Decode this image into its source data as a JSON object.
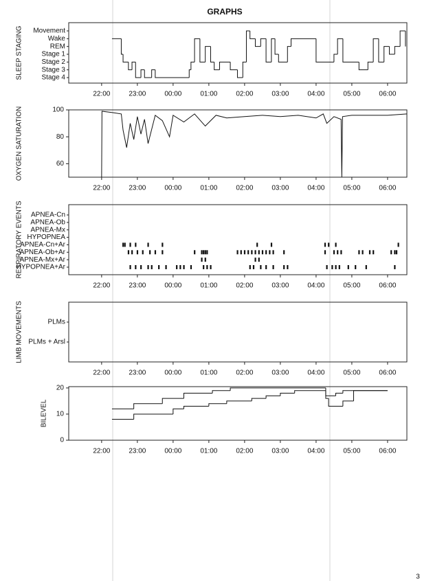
{
  "title": "GRAPHS",
  "page_number": "3",
  "chart_data": [
    {
      "type": "step",
      "ylabel": "SLEEP STAGING",
      "ycategories": [
        "Movement",
        "Wake",
        "REM",
        "Stage 1",
        "Stage 2",
        "Stage 3",
        "Stage 4"
      ],
      "xlim": [
        21.08,
        30.54
      ],
      "xticks": [
        {
          "value": 22,
          "label": "22:00"
        },
        {
          "value": 23,
          "label": "23:00"
        },
        {
          "value": 24,
          "label": "00:00"
        },
        {
          "value": 25,
          "label": "01:00"
        },
        {
          "value": 26,
          "label": "02:00"
        },
        {
          "value": 27,
          "label": "03:00"
        },
        {
          "value": 28,
          "label": "04:00"
        },
        {
          "value": 29,
          "label": "05:00"
        },
        {
          "value": 30,
          "label": "06:00"
        }
      ],
      "series": [
        {
          "color": "#111111",
          "x": [
            22.29,
            22.55,
            22.6,
            22.75,
            22.85,
            22.95,
            23.1,
            23.2,
            23.4,
            23.5,
            24.45,
            24.5,
            24.6,
            24.75,
            24.9,
            25.05,
            25.15,
            25.3,
            25.6,
            25.8,
            25.95,
            26.05,
            26.15,
            26.3,
            26.45,
            26.6,
            26.75,
            26.85,
            26.95,
            27.2,
            27.3,
            28.0,
            28.5,
            28.6,
            28.75,
            29.2,
            29.45,
            29.6,
            29.75,
            29.9,
            30.05,
            30.2,
            30.35,
            30.5
          ],
          "values": [
            "Wake",
            "Stage 1",
            "Stage 2",
            "Stage 3",
            "Stage 2",
            "Stage 4",
            "Stage 3",
            "Stage 4",
            "Stage 3",
            "Stage 4",
            "Stage 3",
            "Stage 2",
            "Wake",
            "Stage 2",
            "REM",
            "Stage 2",
            "Stage 3",
            "Stage 2",
            "Stage 3",
            "Stage 4",
            "Stage 2",
            "Movement",
            "Wake",
            "REM",
            "Wake",
            "Stage 2",
            "Wake",
            "Stage 1",
            "Stage 2",
            "REM",
            "Wake",
            "Stage 2",
            "Stage 1",
            "Wake",
            "Stage 2",
            "Stage 3",
            "Stage 2",
            "Wake",
            "Stage 2",
            "REM",
            "Stage 1",
            "REM",
            "Movement",
            "REM"
          ]
        }
      ]
    },
    {
      "type": "line",
      "ylabel": "OXYGEN SATURATION",
      "xlim": [
        21.08,
        30.54
      ],
      "ylim": [
        50,
        100
      ],
      "yticks": [
        60,
        80,
        100
      ],
      "xticks": [
        {
          "value": 22,
          "label": "22:00"
        },
        {
          "value": 23,
          "label": "23:00"
        },
        {
          "value": 24,
          "label": "00:00"
        },
        {
          "value": 25,
          "label": "01:00"
        },
        {
          "value": 26,
          "label": "02:00"
        },
        {
          "value": 27,
          "label": "03:00"
        },
        {
          "value": 28,
          "label": "04:00"
        },
        {
          "value": 29,
          "label": "05:00"
        },
        {
          "value": 30,
          "label": "06:00"
        }
      ],
      "series": [
        {
          "color": "#111111",
          "x": [
            22.0,
            22.01,
            22.3,
            22.55,
            22.6,
            22.7,
            22.8,
            22.9,
            23.0,
            23.1,
            23.2,
            23.3,
            23.5,
            23.7,
            23.9,
            24.0,
            24.3,
            24.6,
            24.9,
            25.2,
            25.5,
            26.0,
            26.5,
            27.0,
            27.5,
            28.0,
            28.2,
            28.3,
            28.5,
            28.7,
            28.72,
            28.74,
            29.0,
            29.5,
            30.0,
            30.54
          ],
          "values": [
            50,
            99,
            98,
            97,
            85,
            72,
            90,
            78,
            95,
            82,
            93,
            75,
            96,
            92,
            80,
            96,
            91,
            97,
            88,
            96,
            94,
            95,
            96,
            95,
            96,
            94,
            97,
            90,
            95,
            93,
            50,
            95,
            96,
            96,
            96,
            97
          ]
        }
      ]
    },
    {
      "type": "event",
      "ylabel": "RESPIRATORY EVENTS",
      "categories": [
        "APNEA-Cn",
        "APNEA-Ob",
        "APNEA-Mx",
        "HYPOPNEA",
        "APNEA-Cn+Ar",
        "APNEA-Ob+Ar",
        "APNEA-Mx+Ar",
        "HYPOPNEA+Ar"
      ],
      "xlim": [
        21.08,
        30.54
      ],
      "xticks": [
        {
          "value": 22,
          "label": "22:00"
        },
        {
          "value": 23,
          "label": "23:00"
        },
        {
          "value": 24,
          "label": "00:00"
        },
        {
          "value": 25,
          "label": "01:00"
        },
        {
          "value": 26,
          "label": "02:00"
        },
        {
          "value": 27,
          "label": "03:00"
        },
        {
          "value": 28,
          "label": "04:00"
        },
        {
          "value": 29,
          "label": "05:00"
        },
        {
          "value": 30,
          "label": "06:00"
        }
      ],
      "events": [
        [],
        [],
        [],
        [],
        [
          22.6,
          22.65,
          22.8,
          22.95,
          23.3,
          23.7,
          26.35,
          26.75,
          28.25,
          28.35,
          28.55,
          30.3
        ],
        [
          22.75,
          22.85,
          23.0,
          23.15,
          23.35,
          23.5,
          23.7,
          24.6,
          24.8,
          24.85,
          24.9,
          24.95,
          25.8,
          25.9,
          26.0,
          26.1,
          26.2,
          26.3,
          26.4,
          26.5,
          26.6,
          26.7,
          26.8,
          27.1,
          28.25,
          28.5,
          28.6,
          28.7,
          29.2,
          29.3,
          29.5,
          29.6,
          30.1,
          30.2,
          30.25
        ],
        [
          24.8,
          24.9,
          26.3,
          26.4
        ],
        [
          22.8,
          22.95,
          23.1,
          23.3,
          23.4,
          23.6,
          23.8,
          24.1,
          24.2,
          24.3,
          24.5,
          24.85,
          24.95,
          25.05,
          26.15,
          26.25,
          26.45,
          26.6,
          26.8,
          27.1,
          27.2,
          28.3,
          28.45,
          28.55,
          28.65,
          28.9,
          29.1,
          29.4,
          30.2
        ]
      ]
    },
    {
      "type": "event",
      "ylabel": "LIMB MOVEMENTS",
      "categories": [
        "PLMs",
        "PLMs + Arsl"
      ],
      "xlim": [
        21.08,
        30.54
      ],
      "xticks": [
        {
          "value": 22,
          "label": "22:00"
        },
        {
          "value": 23,
          "label": "23:00"
        },
        {
          "value": 24,
          "label": "00:00"
        },
        {
          "value": 25,
          "label": "01:00"
        },
        {
          "value": 26,
          "label": "02:00"
        },
        {
          "value": 27,
          "label": "03:00"
        },
        {
          "value": 28,
          "label": "04:00"
        },
        {
          "value": 29,
          "label": "05:00"
        },
        {
          "value": 30,
          "label": "06:00"
        }
      ],
      "events": [
        [],
        []
      ]
    },
    {
      "type": "step",
      "ylabel": "BILEVEL",
      "xlim": [
        21.08,
        30.54
      ],
      "ylim": [
        0,
        20.5
      ],
      "yticks": [
        0,
        10,
        20
      ],
      "xticks": [
        {
          "value": 22,
          "label": "22:00"
        },
        {
          "value": 23,
          "label": "23:00"
        },
        {
          "value": 24,
          "label": "00:00"
        },
        {
          "value": 25,
          "label": "01:00"
        },
        {
          "value": 26,
          "label": "02:00"
        },
        {
          "value": 27,
          "label": "03:00"
        },
        {
          "value": 28,
          "label": "04:00"
        },
        {
          "value": 29,
          "label": "05:00"
        },
        {
          "value": 30,
          "label": "06:00"
        }
      ],
      "series": [
        {
          "color": "#111111",
          "x": [
            22.29,
            22.9,
            23.7,
            24.3,
            25.1,
            25.6,
            28.27,
            28.55,
            28.75,
            29.05,
            30.0
          ],
          "values": [
            12,
            14,
            16,
            18,
            19,
            20,
            17,
            18,
            19,
            19,
            19
          ]
        },
        {
          "color": "#111111",
          "x": [
            22.29,
            22.9,
            24.0,
            24.3,
            25.0,
            25.5,
            26.2,
            26.6,
            27.0,
            27.4,
            28.27,
            28.35,
            28.75,
            29.05,
            30.0
          ],
          "values": [
            8,
            10,
            12,
            13,
            14,
            15,
            16,
            17,
            18,
            19,
            16,
            13,
            15,
            19,
            19
          ]
        }
      ]
    }
  ]
}
